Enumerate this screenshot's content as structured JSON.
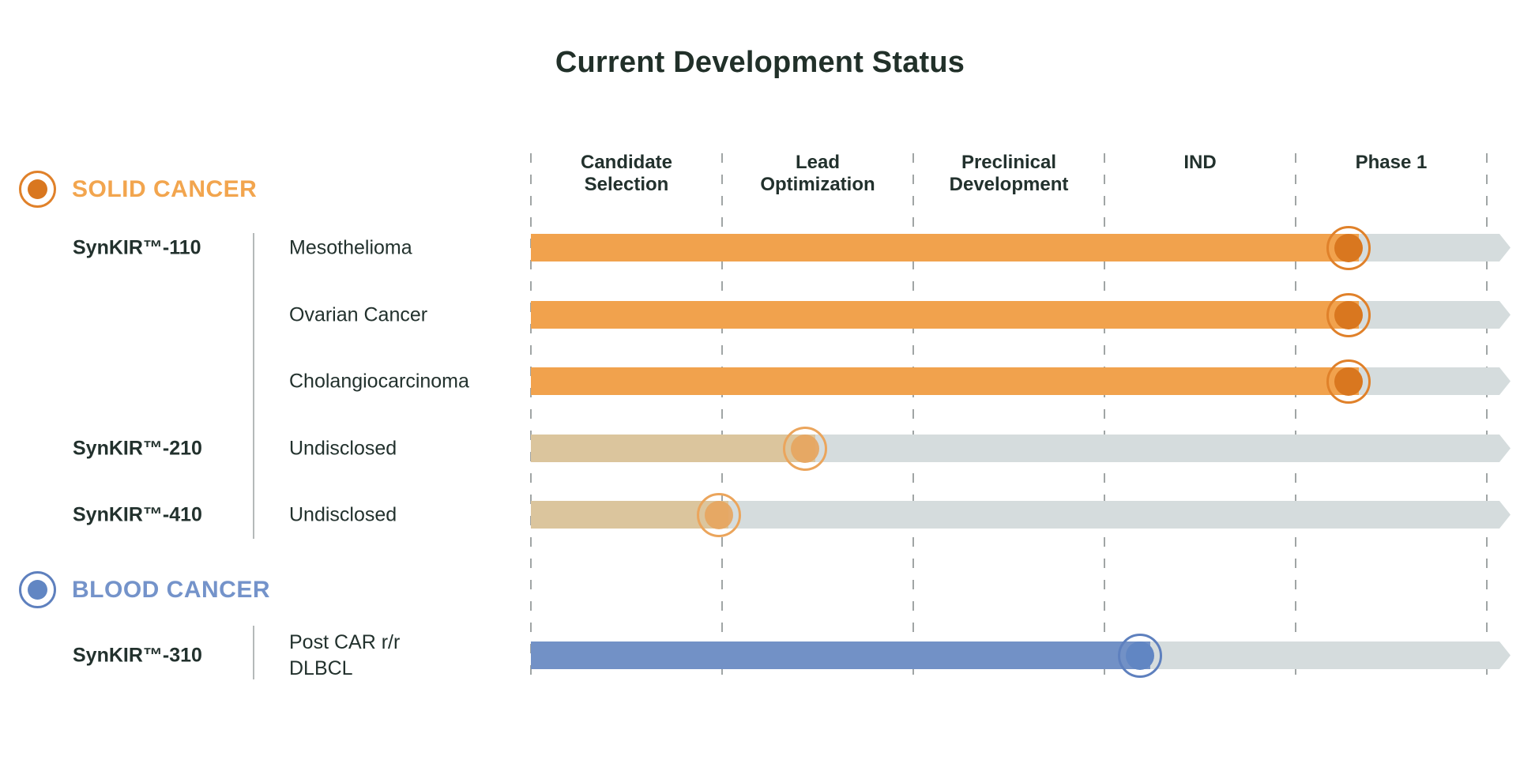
{
  "title": "Current Development Status",
  "header": {
    "stages": [
      "Candidate\nSelection",
      "Lead\nOptimization",
      "Preclinical\nDevelopment",
      "IND",
      "Phase 1"
    ]
  },
  "legend": {
    "solid": "SOLID CANCER",
    "blood": "BLOOD CANCER"
  },
  "rows": [
    {
      "product": "SynKIR™-110",
      "indication": "Mesothelioma",
      "progress_pct": 83.5
    },
    {
      "product": "",
      "indication": "Ovarian Cancer",
      "progress_pct": 83.5
    },
    {
      "product": "",
      "indication": "Cholangiocarcinoma",
      "progress_pct": 83.5
    },
    {
      "product": "SynKIR™-210",
      "indication": "Undisclosed",
      "progress_pct": 28
    },
    {
      "product": "SynKIR™-410",
      "indication": "Undisclosed",
      "progress_pct": 19.2
    },
    {
      "product": "SynKIR™-310",
      "indication": "Post CAR r/r\nDLBCL",
      "progress_pct": 62.2
    }
  ],
  "colors": {
    "orange": "#F1A24D",
    "orange-dot": "#D9771F",
    "orange-ring": "#E0812A",
    "tan": "#DBC59D",
    "tan-dot": "#E7A45E",
    "tan-ring": "#EBA55C",
    "blue": "#7291C6",
    "blue-dot": "#6186C3",
    "blue-ring": "#5E80BE",
    "track": "#D5DCDD",
    "ink": "#22312D",
    "title-ink": "#213029",
    "solid-label": "#F2A54E",
    "blood-label": "#7493CA",
    "dash": "#A0A5A5",
    "divider": "#B5B9B9"
  },
  "chart_data": {
    "type": "bar",
    "orientation": "horizontal",
    "title": "Current Development Status",
    "stages": [
      "Candidate Selection",
      "Lead Optimization",
      "Preclinical Development",
      "IND",
      "Phase 1"
    ],
    "stage_boundaries_pct": [
      0,
      19.5,
      39.0,
      58.5,
      78.1,
      97.6
    ],
    "groups": [
      "SOLID CANCER",
      "BLOOD CANCER"
    ],
    "rows": [
      {
        "group": "SOLID CANCER",
        "program": "SynKIR™-110",
        "indication": "Mesothelioma",
        "current_stage": "Phase 1",
        "progress_pct": 83.5
      },
      {
        "group": "SOLID CANCER",
        "program": "SynKIR™-110",
        "indication": "Ovarian Cancer",
        "current_stage": "Phase 1",
        "progress_pct": 83.5
      },
      {
        "group": "SOLID CANCER",
        "program": "SynKIR™-110",
        "indication": "Cholangiocarcinoma",
        "current_stage": "Phase 1",
        "progress_pct": 83.5
      },
      {
        "group": "SOLID CANCER",
        "program": "SynKIR™-210",
        "indication": "Undisclosed",
        "current_stage": "Lead Optimization",
        "progress_pct": 28
      },
      {
        "group": "SOLID CANCER",
        "program": "SynKIR™-410",
        "indication": "Undisclosed",
        "current_stage": "Candidate Selection / Lead Optimization boundary",
        "progress_pct": 19.2
      },
      {
        "group": "BLOOD CANCER",
        "program": "SynKIR™-310",
        "indication": "Post CAR r/r DLBCL",
        "current_stage": "IND",
        "progress_pct": 62.2
      }
    ],
    "legend_position": "left",
    "grid": "dashed vertical stage separators"
  }
}
